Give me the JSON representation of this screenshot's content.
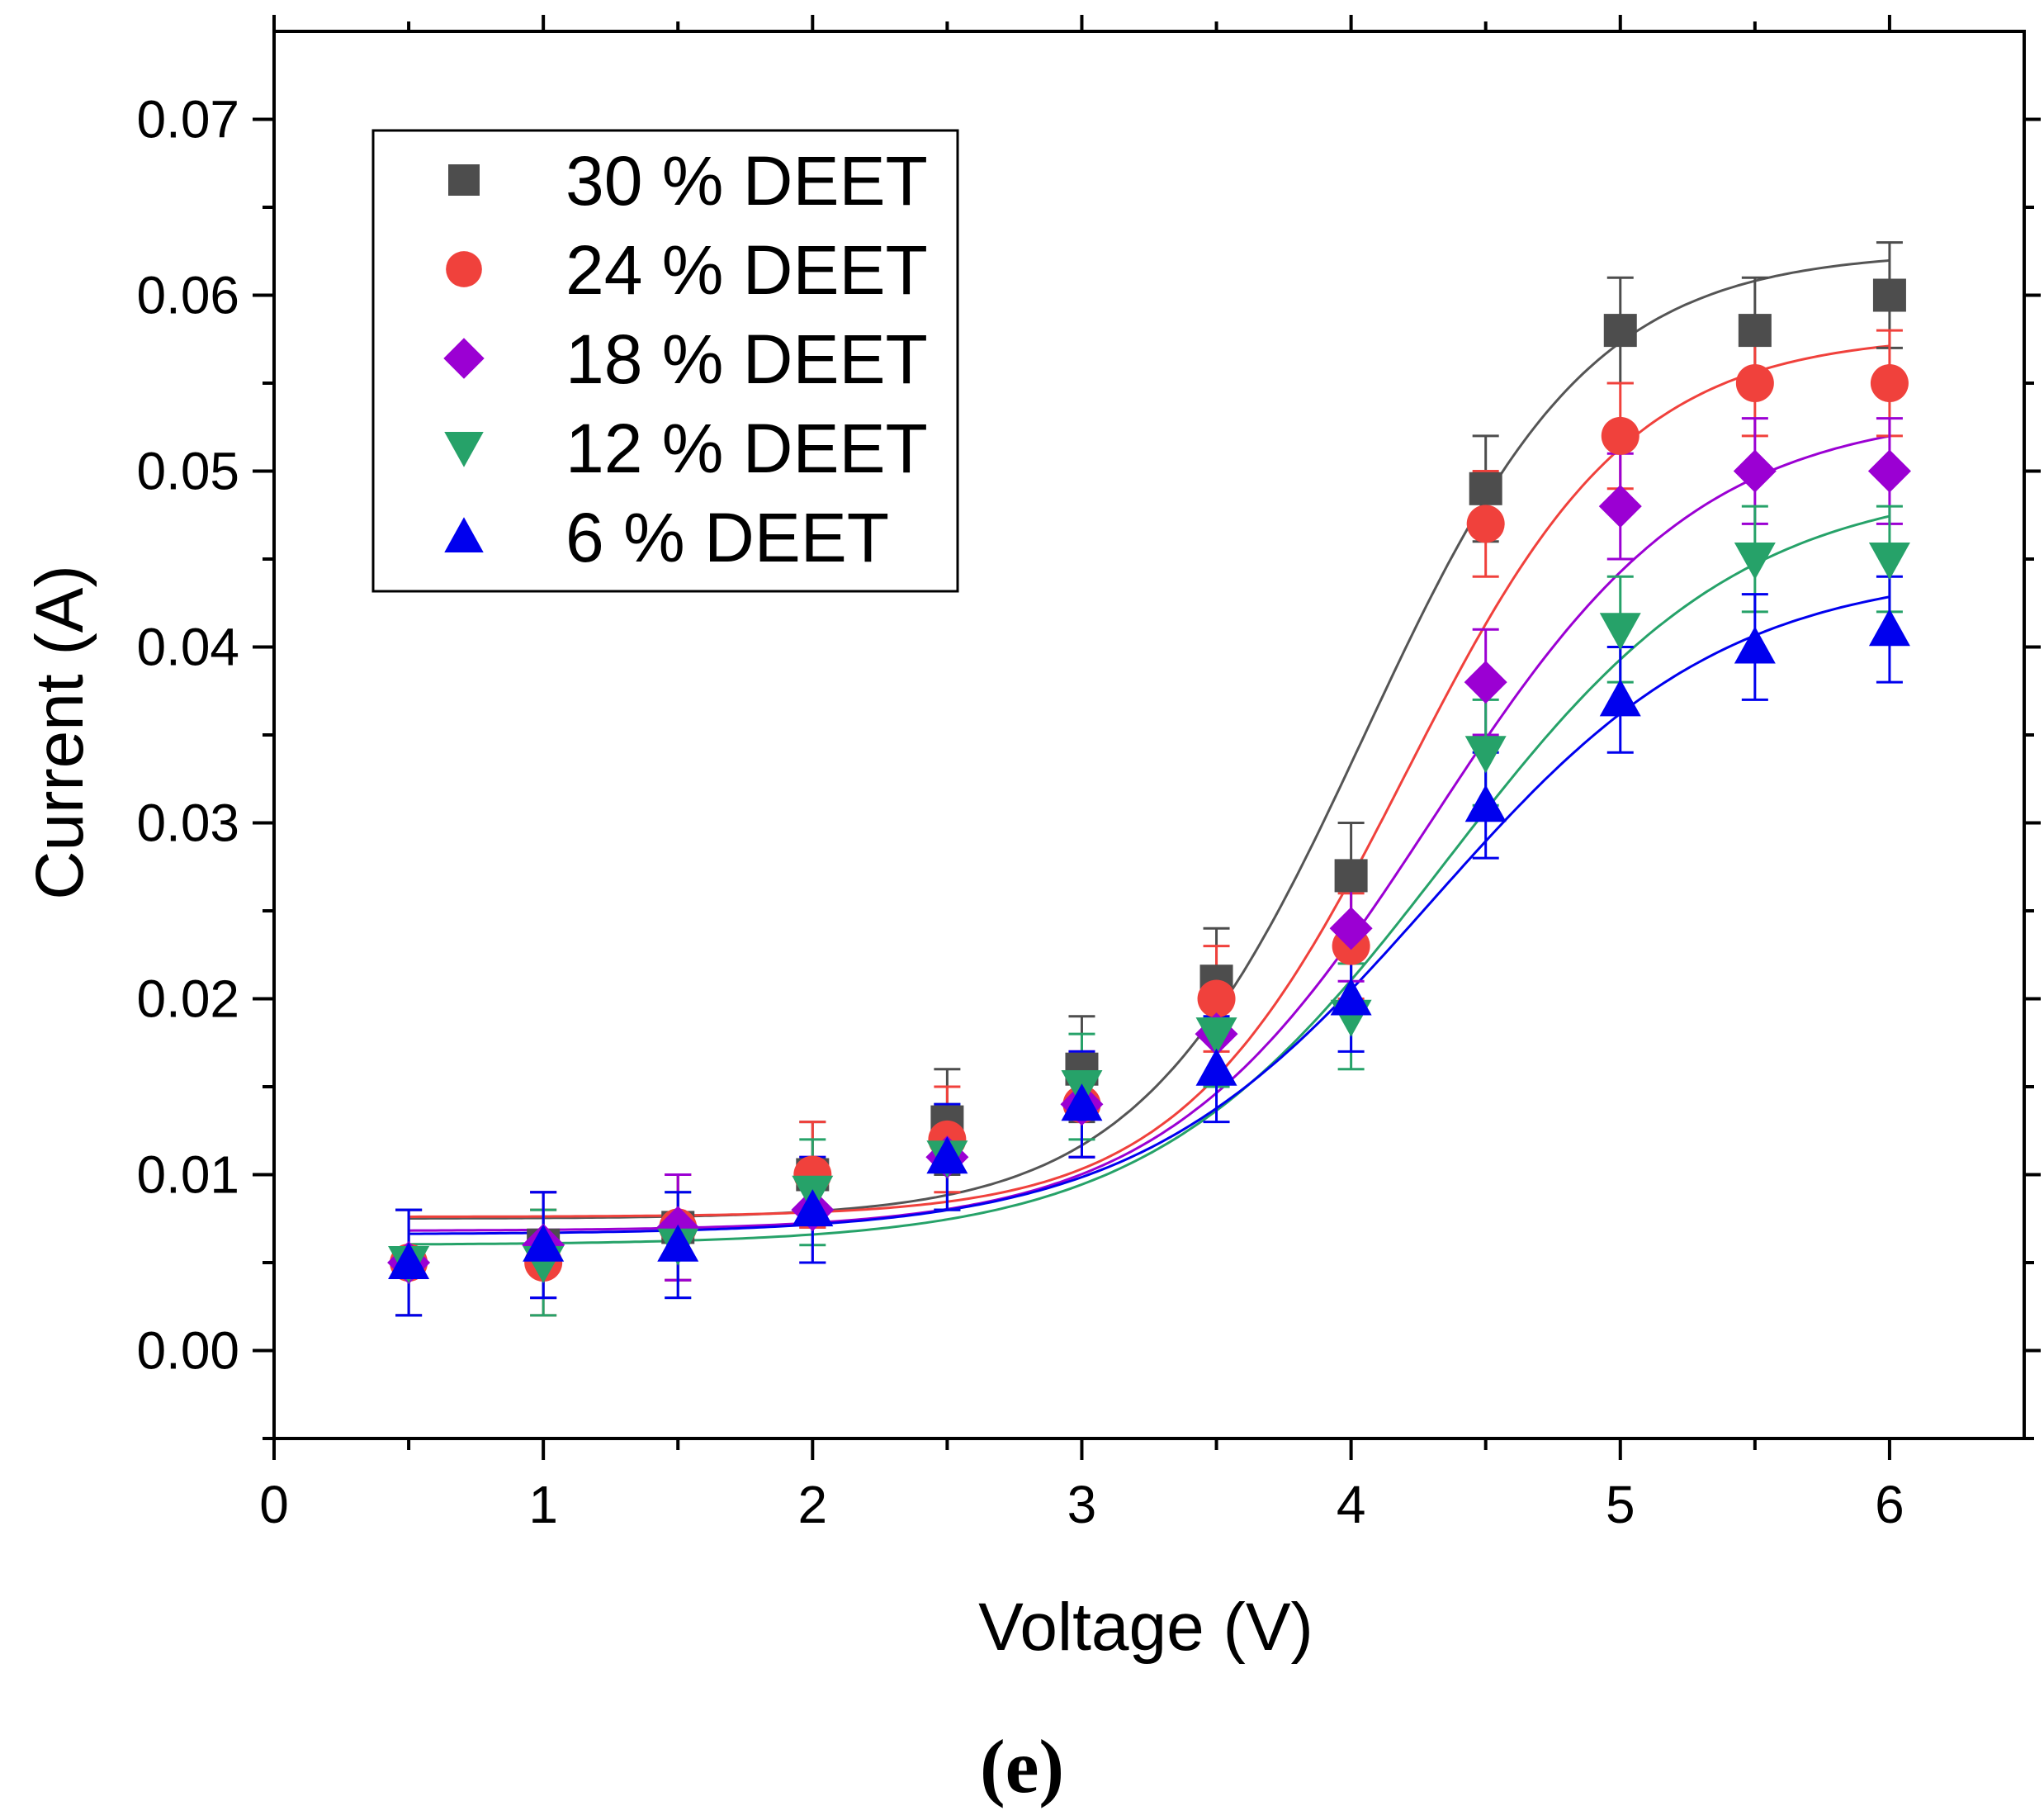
{
  "chart_data": {
    "type": "scatter",
    "title": "",
    "panel_label": "(e)",
    "xlabel": "Voltage (V)",
    "ylabel": "Current (A)",
    "xlim": [
      0,
      6.5
    ],
    "ylim": [
      -0.005,
      0.075
    ],
    "x_ticks": [
      0,
      1,
      2,
      3,
      4,
      5,
      6
    ],
    "x_tick_labels": [
      "0",
      "1",
      "2",
      "3",
      "4",
      "5",
      "6"
    ],
    "y_ticks": [
      0,
      0.01,
      0.02,
      0.03,
      0.04,
      0.05,
      0.06,
      0.07
    ],
    "y_tick_labels": [
      "0.00",
      "0.01",
      "0.02",
      "0.03",
      "0.04",
      "0.05",
      "0.06",
      "0.07"
    ],
    "legend_position": "top-left",
    "x": [
      0.5,
      1.0,
      1.5,
      2.0,
      2.5,
      3.0,
      3.5,
      4.0,
      4.5,
      5.0,
      5.5,
      6.0
    ],
    "fit": "sigmoidal (Boltzmann) fit line per series",
    "series": [
      {
        "name": "30 % DEET",
        "marker": "square",
        "color": "#4d4d4d",
        "fit_color": "#555555",
        "values": [
          0.005,
          0.006,
          0.007,
          0.01,
          0.013,
          0.016,
          0.021,
          0.027,
          0.049,
          0.058,
          0.058,
          0.06
        ],
        "errors": [
          0.003,
          0.003,
          0.003,
          0.003,
          0.003,
          0.003,
          0.003,
          0.003,
          0.003,
          0.003,
          0.003,
          0.003
        ],
        "fit_params": {
          "A1": 0.0075,
          "A2": 0.0625,
          "x0": 4.05,
          "dx": 0.42
        }
      },
      {
        "name": "24 % DEET",
        "marker": "circle",
        "color": "#f0413c",
        "fit_color": "#f0413c",
        "values": [
          0.005,
          0.005,
          0.007,
          0.01,
          0.012,
          0.014,
          0.02,
          0.023,
          0.047,
          0.052,
          0.055,
          0.055
        ],
        "errors": [
          0.003,
          0.003,
          0.003,
          0.003,
          0.003,
          0.003,
          0.003,
          0.003,
          0.003,
          0.003,
          0.003,
          0.003
        ],
        "fit_params": {
          "A1": 0.0076,
          "A2": 0.0578,
          "x0": 4.2,
          "dx": 0.42
        }
      },
      {
        "name": "18 % DEET",
        "marker": "diamond",
        "color": "#9b00d3",
        "fit_color": "#9b00d3",
        "values": [
          0.005,
          0.006,
          0.007,
          0.008,
          0.011,
          0.014,
          0.018,
          0.024,
          0.038,
          0.048,
          0.05,
          0.05
        ],
        "errors": [
          0.003,
          0.003,
          0.003,
          0.003,
          0.003,
          0.003,
          0.003,
          0.003,
          0.003,
          0.003,
          0.003,
          0.003
        ],
        "fit_params": {
          "A1": 0.0068,
          "A2": 0.0535,
          "x0": 4.3,
          "dx": 0.5
        }
      },
      {
        "name": "12 % DEET",
        "marker": "triangle-down",
        "color": "#26a269",
        "fit_color": "#26a269",
        "values": [
          0.005,
          0.005,
          0.006,
          0.009,
          0.011,
          0.015,
          0.018,
          0.019,
          0.034,
          0.041,
          0.045,
          0.045
        ],
        "errors": [
          0.003,
          0.003,
          0.003,
          0.003,
          0.003,
          0.003,
          0.003,
          0.003,
          0.003,
          0.003,
          0.003,
          0.003
        ],
        "fit_params": {
          "A1": 0.006,
          "A2": 0.0495,
          "x0": 4.35,
          "dx": 0.55
        }
      },
      {
        "name": "6 % DEET",
        "marker": "triangle-up",
        "color": "#0000ee",
        "fit_color": "#0000ee",
        "values": [
          0.005,
          0.006,
          0.006,
          0.008,
          0.011,
          0.014,
          0.016,
          0.02,
          0.031,
          0.037,
          0.04,
          0.041
        ],
        "errors": [
          0.003,
          0.003,
          0.003,
          0.003,
          0.003,
          0.003,
          0.003,
          0.003,
          0.003,
          0.003,
          0.003,
          0.003
        ],
        "fit_params": {
          "A1": 0.0066,
          "A2": 0.0445,
          "x0": 4.3,
          "dx": 0.55
        }
      }
    ]
  }
}
